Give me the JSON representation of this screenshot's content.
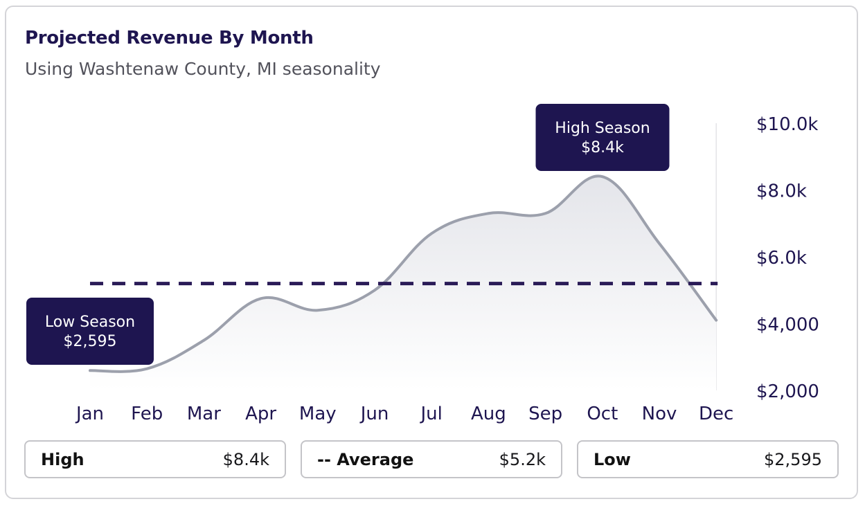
{
  "header": {
    "title": "Projected Revenue By Month",
    "subtitle": "Using Washtenaw County, MI seasonality"
  },
  "chart_data": {
    "type": "area",
    "categories": [
      "Jan",
      "Feb",
      "Mar",
      "Apr",
      "May",
      "Jun",
      "Jul",
      "Aug",
      "Sep",
      "Oct",
      "Nov",
      "Dec"
    ],
    "values": [
      2595,
      2650,
      3500,
      4750,
      4400,
      5000,
      6700,
      7300,
      7300,
      8400,
      6400,
      4100
    ],
    "average": 5200,
    "y_ticks": [
      {
        "value": 10000,
        "label": "$10.0k"
      },
      {
        "value": 8000,
        "label": "$8.0k"
      },
      {
        "value": 6000,
        "label": "$6.0k"
      },
      {
        "value": 4000,
        "label": "$4,000"
      },
      {
        "value": 2000,
        "label": "$2,000"
      }
    ],
    "ylim": [
      2000,
      10000
    ],
    "colors": {
      "line": "#9ca0ac",
      "fill_top": "#e4e5ea",
      "fill_bottom": "#ffffff",
      "average": "#2a1b57",
      "callout": "#1e1550"
    },
    "annotations": {
      "low": {
        "title": "Low Season",
        "value": "$2,595",
        "month": "Jan"
      },
      "high": {
        "title": "High Season",
        "value": "$8.4k",
        "month": "Oct"
      }
    }
  },
  "stats": [
    {
      "label": "High",
      "value": "$8.4k"
    },
    {
      "label": "-- Average",
      "value": "$5.2k"
    },
    {
      "label": "Low",
      "value": "$2,595"
    }
  ]
}
